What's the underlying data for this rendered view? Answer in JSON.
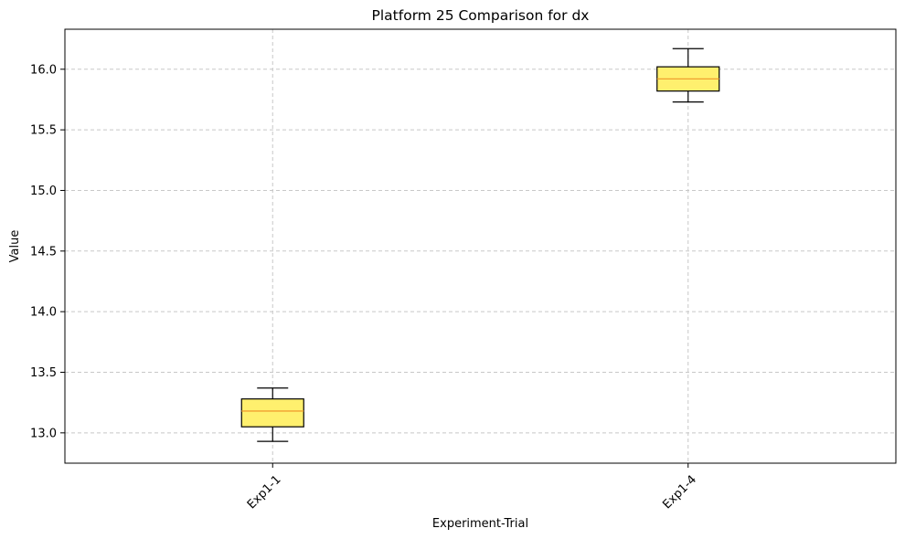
{
  "chart_data": {
    "type": "box",
    "title": "Platform 25 Comparison for dx",
    "xlabel": "Experiment-Trial",
    "ylabel": "Value",
    "categories": [
      "Exp1-1",
      "Exp1-4"
    ],
    "boxes": [
      {
        "label": "Exp1-1",
        "whisker_low": 12.93,
        "q1": 13.05,
        "median": 13.18,
        "q3": 13.28,
        "whisker_high": 13.37
      },
      {
        "label": "Exp1-4",
        "whisker_low": 15.73,
        "q1": 15.82,
        "median": 15.92,
        "q3": 16.02,
        "whisker_high": 16.17
      }
    ],
    "ylim": [
      12.75,
      16.33
    ],
    "yticks": [
      "13.0",
      "13.5",
      "14.0",
      "14.5",
      "15.0",
      "15.5",
      "16.0"
    ],
    "grid": true,
    "colors": {
      "box_fill": "#fff06e",
      "median": "#f0a030",
      "grid": "#c8c8c8",
      "line": "#000000"
    }
  }
}
